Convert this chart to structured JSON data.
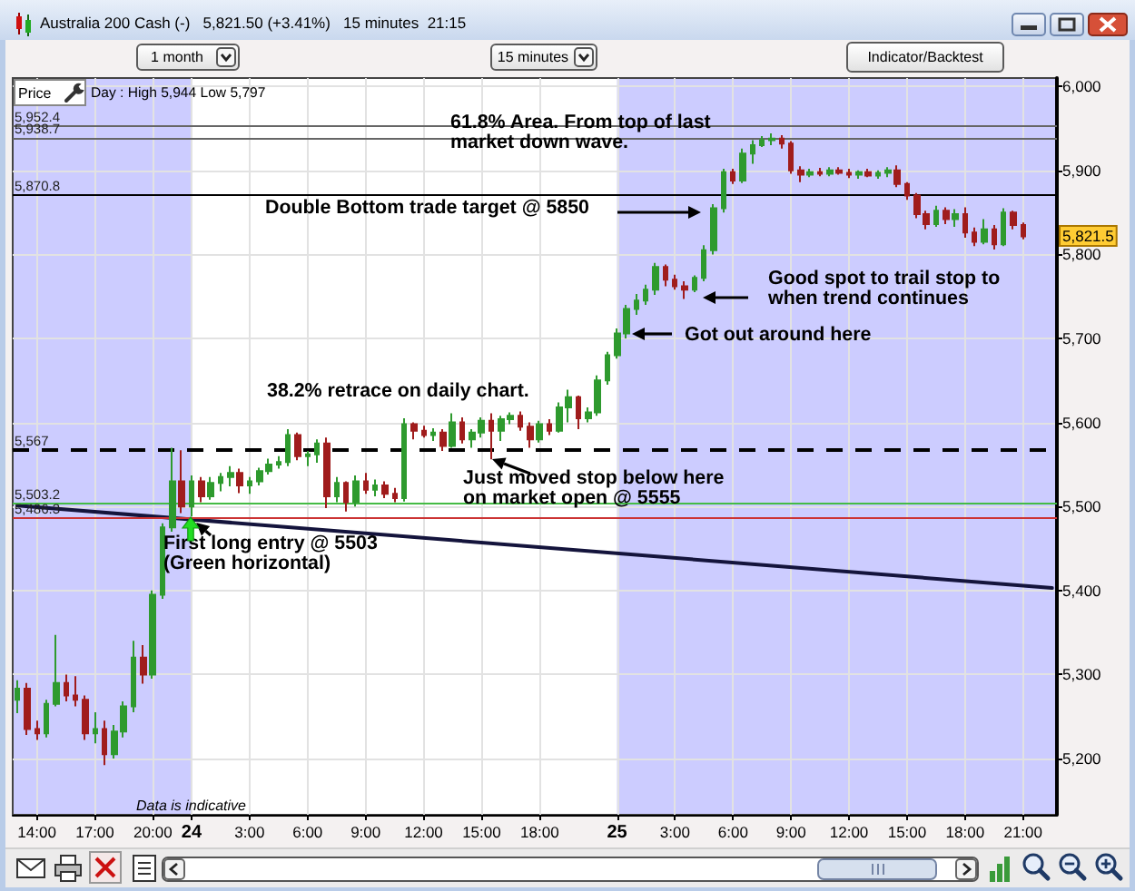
{
  "chart_data": {
    "type": "candlestick",
    "title": "Australia 200 Cash (-)   5,821.50 (+3.41%)   15 minutes  21:15",
    "subtitle": "Day : High 5,944 Low 5,797",
    "ylabel": "Price",
    "categories": [
      null,
      null,
      "14:00",
      null,
      null,
      null,
      null,
      null,
      "17:00",
      null,
      null,
      null,
      null,
      null,
      "20:00",
      null,
      null,
      null,
      "24",
      null,
      null,
      null,
      null,
      null,
      "3:00",
      null,
      null,
      null,
      null,
      null,
      "6:00",
      null,
      null,
      null,
      null,
      null,
      "9:00",
      null,
      null,
      null,
      null,
      null,
      "12:00",
      null,
      null,
      null,
      null,
      null,
      "15:00",
      null,
      null,
      null,
      null,
      null,
      "18:00",
      null,
      null,
      null,
      null,
      null,
      null,
      null,
      "25",
      null,
      null,
      null,
      null,
      null,
      "3:00",
      null,
      null,
      null,
      null,
      null,
      "6:00",
      null,
      null,
      null,
      null,
      null,
      "9:00",
      null,
      null,
      null,
      null,
      null,
      "12:00",
      null,
      null,
      null,
      null,
      null,
      "15:00",
      null,
      null,
      null,
      null,
      null,
      "18:00",
      null,
      null,
      null,
      null,
      null,
      "21:00",
      null,
      null,
      null
    ],
    "series": [
      {
        "type": "candlestick",
        "ohlc": [
          [
            5270,
            5293,
            5254,
            5283
          ],
          [
            5283,
            5290,
            5228,
            5235
          ],
          [
            5235,
            5245,
            5222,
            5230
          ],
          [
            5230,
            5270,
            5225,
            5265
          ],
          [
            5265,
            5347,
            5262,
            5290
          ],
          [
            5290,
            5300,
            5268,
            5275
          ],
          [
            5275,
            5298,
            5262,
            5270
          ],
          [
            5270,
            5275,
            5222,
            5230
          ],
          [
            5230,
            5255,
            5218,
            5235
          ],
          [
            5235,
            5245,
            5192,
            5205
          ],
          [
            5205,
            5240,
            5200,
            5232
          ],
          [
            5232,
            5268,
            5225,
            5262
          ],
          [
            5262,
            5340,
            5255,
            5320
          ],
          [
            5320,
            5335,
            5289,
            5300
          ],
          [
            5300,
            5400,
            5295,
            5395
          ],
          [
            5395,
            5480,
            5390,
            5475
          ],
          [
            5475,
            5570,
            5470,
            5530
          ],
          [
            5530,
            5567,
            5492,
            5500
          ],
          [
            5500,
            5537,
            5488,
            5530
          ],
          [
            5530,
            5535,
            5505,
            5512
          ],
          [
            5512,
            5535,
            5508,
            5528
          ],
          [
            5528,
            5540,
            5518,
            5535
          ],
          [
            5535,
            5548,
            5524,
            5540
          ],
          [
            5540,
            5545,
            5516,
            5525
          ],
          [
            5525,
            5535,
            5515,
            5530
          ],
          [
            5530,
            5546,
            5525,
            5542
          ],
          [
            5542,
            5557,
            5538,
            5550
          ],
          [
            5550,
            5560,
            5545,
            5553
          ],
          [
            5553,
            5592,
            5548,
            5585
          ],
          [
            5585,
            5588,
            5555,
            5560
          ],
          [
            5560,
            5566,
            5548,
            5562
          ],
          [
            5562,
            5580,
            5552,
            5575
          ],
          [
            5575,
            5582,
            5498,
            5512
          ],
          [
            5512,
            5535,
            5505,
            5528
          ],
          [
            5528,
            5530,
            5494,
            5505
          ],
          [
            5505,
            5537,
            5500,
            5530
          ],
          [
            5530,
            5540,
            5515,
            5520
          ],
          [
            5520,
            5532,
            5512,
            5525
          ],
          [
            5525,
            5530,
            5510,
            5515
          ],
          [
            5515,
            5522,
            5505,
            5510
          ],
          [
            5510,
            5605,
            5506,
            5598
          ],
          [
            5598,
            5600,
            5580,
            5590
          ],
          [
            5590,
            5596,
            5582,
            5585
          ],
          [
            5585,
            5593,
            5578,
            5588
          ],
          [
            5588,
            5592,
            5566,
            5572
          ],
          [
            5572,
            5611,
            5570,
            5600
          ],
          [
            5600,
            5606,
            5575,
            5580
          ],
          [
            5580,
            5592,
            5570,
            5588
          ],
          [
            5588,
            5606,
            5582,
            5602
          ],
          [
            5602,
            5611,
            5556,
            5590
          ],
          [
            5590,
            5608,
            5578,
            5604
          ],
          [
            5604,
            5612,
            5598,
            5608
          ],
          [
            5608,
            5613,
            5590,
            5595
          ],
          [
            5595,
            5600,
            5570,
            5580
          ],
          [
            5580,
            5602,
            5576,
            5598
          ],
          [
            5598,
            5604,
            5585,
            5590
          ],
          [
            5590,
            5624,
            5588,
            5618
          ],
          [
            5618,
            5639,
            5600,
            5630
          ],
          [
            5630,
            5632,
            5592,
            5605
          ],
          [
            5605,
            5618,
            5600,
            5612
          ],
          [
            5612,
            5656,
            5608,
            5650
          ],
          [
            5650,
            5684,
            5645,
            5680
          ],
          [
            5680,
            5712,
            5676,
            5706
          ],
          [
            5706,
            5740,
            5700,
            5735
          ],
          [
            5735,
            5753,
            5728,
            5745
          ],
          [
            5745,
            5764,
            5740,
            5758
          ],
          [
            5758,
            5790,
            5752,
            5785
          ],
          [
            5785,
            5788,
            5762,
            5770
          ],
          [
            5770,
            5776,
            5758,
            5762
          ],
          [
            5762,
            5768,
            5747,
            5758
          ],
          [
            5758,
            5775,
            5755,
            5772
          ],
          [
            5772,
            5811,
            5768,
            5805
          ],
          [
            5805,
            5860,
            5800,
            5855
          ],
          [
            5855,
            5902,
            5850,
            5898
          ],
          [
            5898,
            5902,
            5884,
            5888
          ],
          [
            5888,
            5926,
            5885,
            5920
          ],
          [
            5920,
            5936,
            5908,
            5930
          ],
          [
            5930,
            5941,
            5928,
            5936
          ],
          [
            5936,
            5944,
            5930,
            5938
          ],
          [
            5938,
            5942,
            5926,
            5932
          ],
          [
            5932,
            5935,
            5896,
            5900
          ],
          [
            5900,
            5905,
            5886,
            5895
          ],
          [
            5895,
            5902,
            5892,
            5898
          ],
          [
            5898,
            5903,
            5893,
            5896
          ],
          [
            5896,
            5904,
            5893,
            5900
          ],
          [
            5900,
            5904,
            5895,
            5897
          ],
          [
            5897,
            5902,
            5891,
            5895
          ],
          [
            5895,
            5900,
            5890,
            5898
          ],
          [
            5898,
            5902,
            5892,
            5894
          ],
          [
            5894,
            5900,
            5890,
            5897
          ],
          [
            5897,
            5904,
            5892,
            5900
          ],
          [
            5900,
            5906,
            5880,
            5884
          ],
          [
            5884,
            5886,
            5865,
            5870
          ],
          [
            5870,
            5873,
            5843,
            5848
          ],
          [
            5848,
            5852,
            5830,
            5836
          ],
          [
            5836,
            5858,
            5833,
            5852
          ],
          [
            5852,
            5856,
            5836,
            5842
          ],
          [
            5842,
            5854,
            5833,
            5848
          ],
          [
            5848,
            5856,
            5820,
            5826
          ],
          [
            5826,
            5832,
            5810,
            5815
          ],
          [
            5815,
            5842,
            5812,
            5830
          ],
          [
            5830,
            5835,
            5806,
            5812
          ],
          [
            5812,
            5855,
            5810,
            5850
          ],
          [
            5850,
            5852,
            5830,
            5835
          ],
          [
            5835,
            5838,
            5818,
            5821.5
          ],
          null,
          null,
          null
        ],
        "colors": [
          "#2e9a2e",
          "#a01c1c",
          "#a01c1c",
          "#2e9a2e",
          "#2e9a2e",
          "#a01c1c",
          "#a01c1c",
          "#a01c1c",
          "#2e9a2e",
          "#a01c1c",
          "#2e9a2e",
          "#2e9a2e",
          "#2e9a2e",
          "#a01c1c",
          "#2e9a2e",
          "#2e9a2e",
          "#2e9a2e",
          "#a01c1c",
          "#2e9a2e",
          "#a01c1c",
          "#2e9a2e",
          "#2e9a2e",
          "#2e9a2e",
          "#a01c1c",
          "#2e9a2e",
          "#2e9a2e",
          "#2e9a2e",
          "#2e9a2e",
          "#2e9a2e",
          "#a01c1c",
          "#2e9a2e",
          "#2e9a2e",
          "#a01c1c",
          "#2e9a2e",
          "#a01c1c",
          "#2e9a2e",
          "#a01c1c",
          "#2e9a2e",
          "#a01c1c",
          "#a01c1c",
          "#2e9a2e",
          "#a01c1c",
          "#a01c1c",
          "#2e9a2e",
          "#a01c1c",
          "#2e9a2e",
          "#a01c1c",
          "#2e9a2e",
          "#2e9a2e",
          "#a01c1c",
          "#2e9a2e",
          "#2e9a2e",
          "#a01c1c",
          "#a01c1c",
          "#2e9a2e",
          "#a01c1c",
          "#2e9a2e",
          "#2e9a2e",
          "#a01c1c",
          "#2e9a2e",
          "#2e9a2e",
          "#2e9a2e",
          "#2e9a2e",
          "#2e9a2e",
          "#2e9a2e",
          "#2e9a2e",
          "#2e9a2e",
          "#a01c1c",
          "#a01c1c",
          "#a01c1c",
          "#2e9a2e",
          "#2e9a2e",
          "#2e9a2e",
          "#2e9a2e",
          "#a01c1c",
          "#2e9a2e",
          "#2e9a2e",
          "#2e9a2e",
          "#2e9a2e",
          "#a01c1c",
          "#a01c1c",
          "#a01c1c",
          "#2e9a2e",
          "#a01c1c",
          "#2e9a2e",
          "#a01c1c",
          "#a01c1c",
          "#2e9a2e",
          "#a01c1c",
          "#2e9a2e",
          "#2e9a2e",
          "#a01c1c",
          "#a01c1c",
          "#a01c1c",
          "#a01c1c",
          "#2e9a2e",
          "#a01c1c",
          "#2e9a2e",
          "#a01c1c",
          "#a01c1c",
          "#2e9a2e",
          "#a01c1c",
          "#2e9a2e",
          "#a01c1c",
          "#a01c1c",
          null,
          null,
          null
        ]
      },
      {
        "type": "line",
        "color": "#14143c",
        "values": [
          5501,
          null,
          null,
          null,
          null,
          null,
          null,
          null,
          null,
          null,
          null,
          null,
          null,
          null,
          null,
          null,
          null,
          null,
          null,
          null,
          null,
          null,
          null,
          null,
          null,
          null,
          null,
          null,
          null,
          null,
          null,
          null,
          null,
          null,
          null,
          null,
          null,
          null,
          null,
          null,
          null,
          null,
          null,
          null,
          null,
          null,
          null,
          null,
          null,
          null,
          null,
          null,
          null,
          null,
          null,
          null,
          null,
          null,
          null,
          null,
          null,
          null,
          null,
          null,
          null,
          null,
          null,
          null,
          null,
          null,
          null,
          null,
          null,
          null,
          null,
          null,
          null,
          null,
          null,
          null,
          null,
          null,
          null,
          null,
          null,
          null,
          null,
          null,
          null,
          null,
          null,
          null,
          null,
          null,
          null,
          null,
          null,
          null,
          null,
          null,
          null,
          null,
          null,
          null,
          null,
          null,
          null,
          5403
        ]
      }
    ],
    "ylim": [
      5133,
      6010
    ],
    "yticks": [
      {
        "value": 5200,
        "label": "5,200"
      },
      {
        "value": 5300,
        "label": "5,300"
      },
      {
        "value": 5400,
        "label": "5,400"
      },
      {
        "value": 5500,
        "label": "5,500"
      },
      {
        "value": 5600,
        "label": "5,600"
      },
      {
        "value": 5700,
        "label": "5,700"
      },
      {
        "value": 5800,
        "label": "5,800"
      },
      {
        "value": 5900,
        "label": "5,900"
      },
      {
        "value": 6000,
        "label": "6,000"
      }
    ],
    "grid": true,
    "ref_lines": [
      {
        "axis": "y",
        "value": 5952.4,
        "label": "5,952.4",
        "color": "#666666"
      },
      {
        "axis": "y",
        "value": 5938.7,
        "label": "5,938.7",
        "color": "#666666"
      },
      {
        "axis": "y",
        "value": 5870.8,
        "label": "5,870.8",
        "color": "#000000"
      },
      {
        "axis": "y",
        "value": 5567,
        "label": "5,567",
        "color": "#000000",
        "line_style": "dashed"
      },
      {
        "axis": "y",
        "value": 5503.2,
        "label": "5,503.2",
        "color": "#44bb44"
      },
      {
        "axis": "y",
        "value": 5486.3,
        "label": "5,486.3",
        "color": "#cc3333"
      }
    ],
    "annotations": [
      "1 month",
      "15 minutes",
      "Indicator/Backtest",
      "61.8% Area. From top of last\nmarket down wave.",
      "Double Bottom trade target @ 5850",
      "38.2% retrace on daily chart.",
      "Good spot to trail stop to\nwhen trend continues",
      "Got out around here",
      "Just moved stop below here\non market open @ 5555",
      "First long entry @ 5503\n(Green horizontal)",
      "Data is indicative",
      "5,821.5"
    ]
  }
}
